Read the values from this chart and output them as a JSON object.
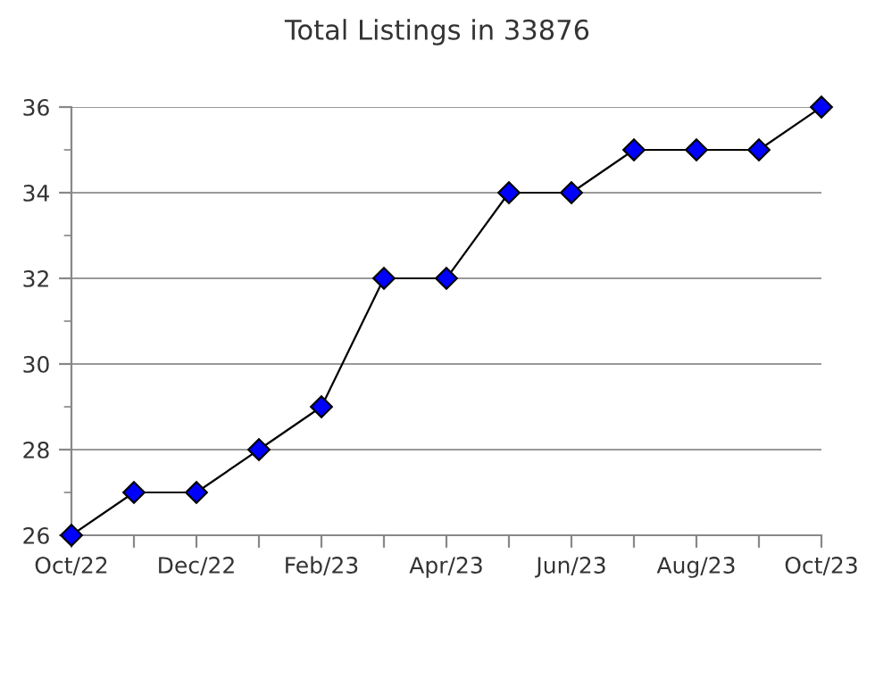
{
  "chart_data": {
    "type": "line",
    "title": "Total Listings in 33876",
    "categories": [
      "Oct/22",
      null,
      "Dec/22",
      null,
      "Feb/23",
      null,
      "Apr/23",
      null,
      "Jun/23",
      null,
      "Aug/23",
      null,
      "Oct/23"
    ],
    "series": [
      {
        "color": "#0000ff",
        "values": [
          26,
          27,
          27,
          28,
          29,
          32,
          32,
          34,
          34,
          35,
          35,
          35,
          36
        ]
      }
    ],
    "ylim": [
      26,
      36
    ],
    "yticks": [
      26,
      28,
      30,
      32,
      34,
      36
    ],
    "grid": "y",
    "marker": "diamond",
    "line_style": "solid",
    "legend": false
  }
}
